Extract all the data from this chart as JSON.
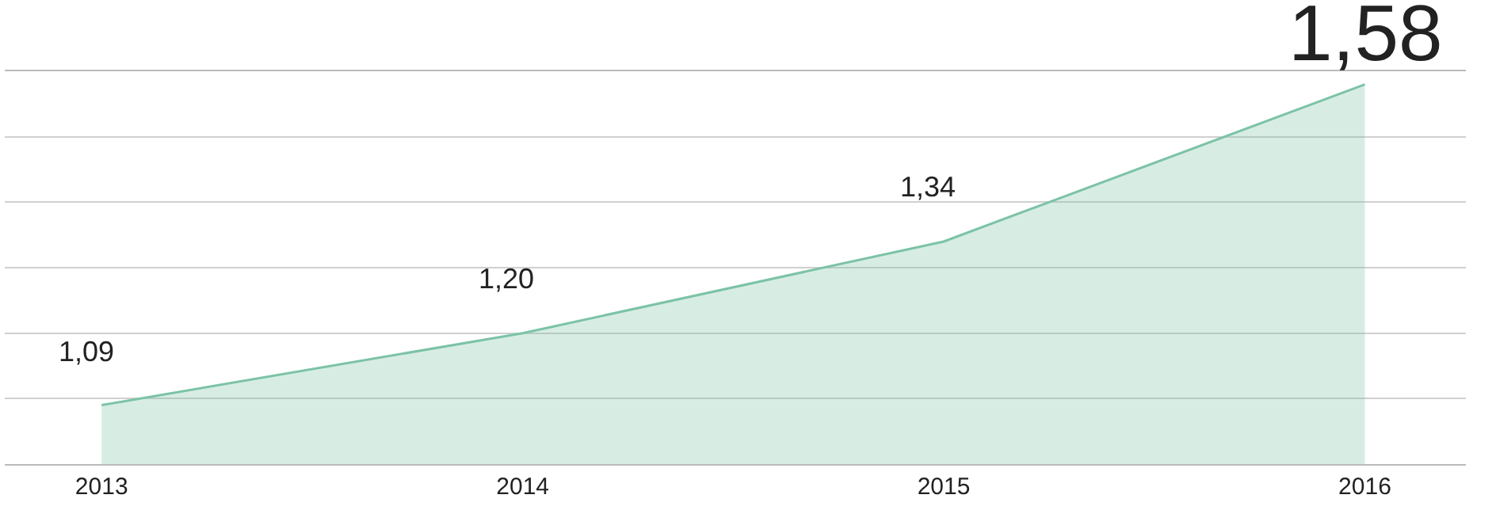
{
  "chart_data": {
    "type": "area",
    "x": [
      2013,
      2014,
      2015,
      2016
    ],
    "series": [
      {
        "color": "#7cc3a6",
        "values": [
          1.09,
          1.2,
          1.34,
          1.58
        ],
        "value_labels": [
          "1,09",
          "1,20",
          "1,34",
          "1,58"
        ]
      }
    ],
    "xlim": [
      2012.77,
      2016.24
    ],
    "xticks": [
      2013,
      2014,
      2015,
      2016
    ],
    "ylim": [
      1.0,
      1.6
    ],
    "grid": "y",
    "tick_labels": "x"
  }
}
